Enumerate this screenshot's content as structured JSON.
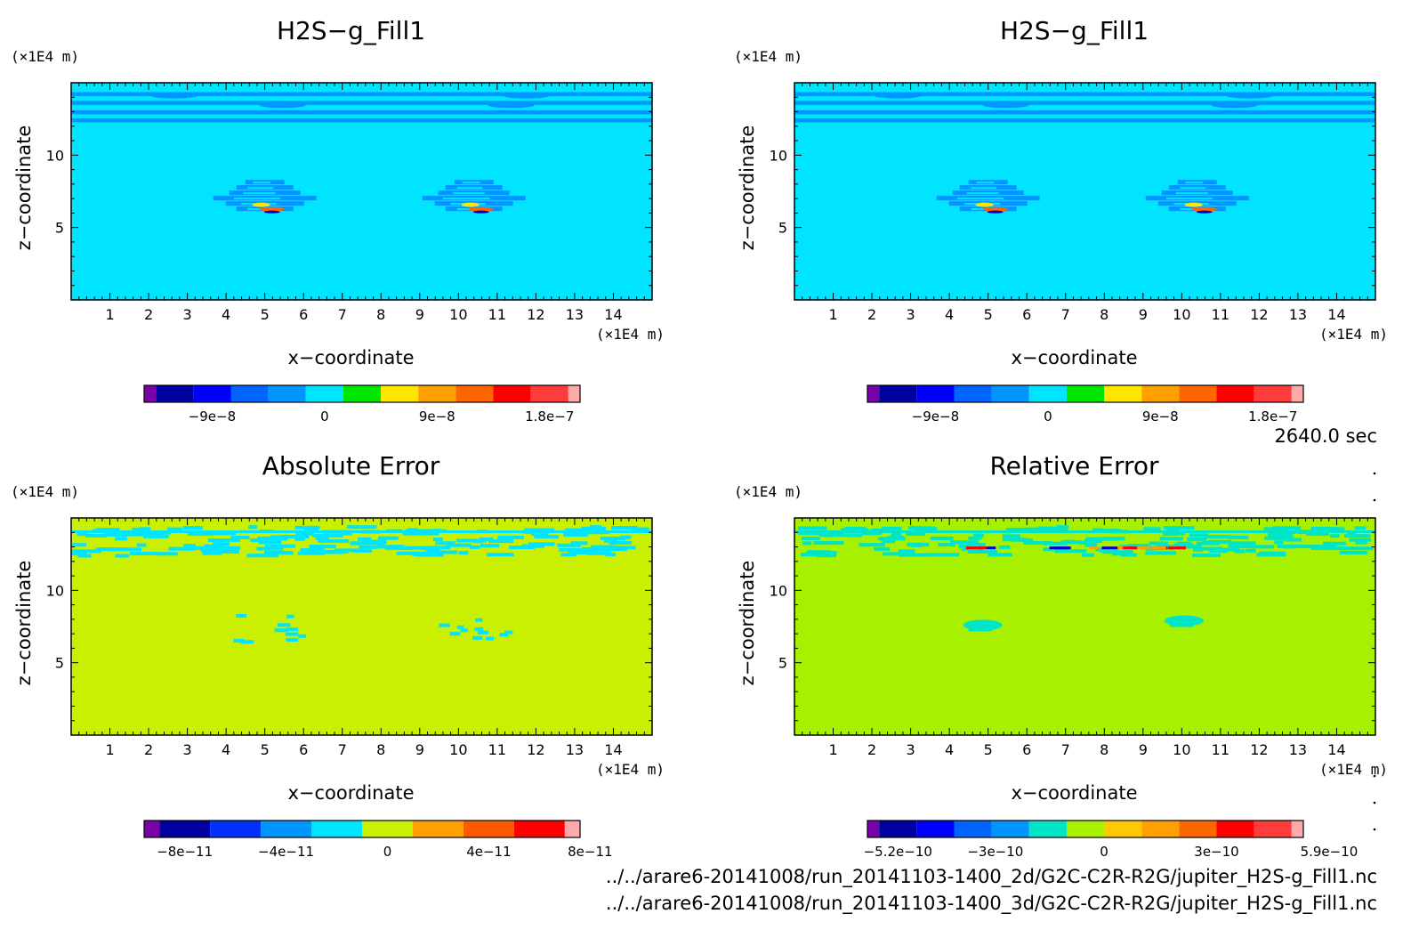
{
  "time_label": "2640.0 sec",
  "footer": {
    "line1": "../../arare6-20141008/run_20141103-1400_2d/G2C-C2R-R2G/jupiter_H2S-g_Fill1.nc",
    "line2": "../../arare6-20141008/run_20141103-1400_3d/G2C-C2R-R2G/jupiter_H2S-g_Fill1.nc"
  },
  "chart_data": [
    {
      "type": "heatmap",
      "title": "H2S−g_Fill1",
      "xlabel": "x−coordinate",
      "ylabel": "z−coordinate",
      "x_unit": "(×1E4 m)",
      "y_unit": "(×1E4 m)",
      "xlim": [
        0,
        15
      ],
      "ylim": [
        0,
        15
      ],
      "x_ticks": [
        "1",
        "2",
        "3",
        "4",
        "5",
        "6",
        "7",
        "8",
        "9",
        "10",
        "11",
        "12",
        "13",
        "14"
      ],
      "y_ticks": [
        "5",
        "10"
      ],
      "background_color": "#00e4ff",
      "features": [
        {
          "kind": "bands",
          "z_range": [
            12.5,
            14.5
          ],
          "color": "#0096ff"
        },
        {
          "kind": "plume",
          "x_center": 5.0,
          "z_center": 7.0,
          "colors": [
            "#0096ff",
            "#00e4ff",
            "#ffe600",
            "#ff6600",
            "#0000cc"
          ]
        },
        {
          "kind": "plume",
          "x_center": 10.4,
          "z_center": 7.0,
          "colors": [
            "#0096ff",
            "#00e4ff",
            "#ffe600",
            "#ff6600",
            "#0000cc"
          ]
        }
      ],
      "colorbar": {
        "colors": [
          "#7a00aa",
          "#0000a0",
          "#0000ff",
          "#0064ff",
          "#0096ff",
          "#00e4ff",
          "#00e600",
          "#ffe600",
          "#ff9f00",
          "#ff6600",
          "#ff0000",
          "#ff3c3c",
          "#ffaaaa"
        ],
        "tick_labels": [
          "−9e−8",
          "0",
          "9e−8",
          "1.8e−7"
        ]
      }
    },
    {
      "type": "heatmap",
      "title": "H2S−g_Fill1",
      "xlabel": "x−coordinate",
      "ylabel": "z−coordinate",
      "x_unit": "(×1E4 m)",
      "y_unit": "(×1E4 m)",
      "xlim": [
        0,
        15
      ],
      "ylim": [
        0,
        15
      ],
      "x_ticks": [
        "1",
        "2",
        "3",
        "4",
        "5",
        "6",
        "7",
        "8",
        "9",
        "10",
        "11",
        "12",
        "13",
        "14"
      ],
      "y_ticks": [
        "5",
        "10"
      ],
      "background_color": "#00e4ff",
      "features": [
        {
          "kind": "bands",
          "z_range": [
            12.5,
            14.5
          ],
          "color": "#0096ff"
        },
        {
          "kind": "plume",
          "x_center": 5.0,
          "z_center": 7.0,
          "colors": [
            "#0096ff",
            "#00e4ff",
            "#ffe600",
            "#ff6600",
            "#0000cc"
          ]
        },
        {
          "kind": "plume",
          "x_center": 10.4,
          "z_center": 7.0,
          "colors": [
            "#0096ff",
            "#00e4ff",
            "#ffe600",
            "#ff6600",
            "#0000cc"
          ]
        }
      ],
      "colorbar": {
        "colors": [
          "#7a00aa",
          "#0000a0",
          "#0000ff",
          "#0064ff",
          "#0096ff",
          "#00e4ff",
          "#00e600",
          "#ffe600",
          "#ff9f00",
          "#ff6600",
          "#ff0000",
          "#ff3c3c",
          "#ffaaaa"
        ],
        "tick_labels": [
          "−9e−8",
          "0",
          "9e−8",
          "1.8e−7"
        ]
      }
    },
    {
      "type": "heatmap",
      "title": "Absolute Error",
      "xlabel": "x−coordinate",
      "ylabel": "z−coordinate",
      "x_unit": "(×1E4 m)",
      "y_unit": "(×1E4 m)",
      "xlim": [
        0,
        15
      ],
      "ylim": [
        0,
        15
      ],
      "x_ticks": [
        "1",
        "2",
        "3",
        "4",
        "5",
        "6",
        "7",
        "8",
        "9",
        "10",
        "11",
        "12",
        "13",
        "14"
      ],
      "y_ticks": [
        "5",
        "10"
      ],
      "background_color": "#c8f000",
      "features": [
        {
          "kind": "noise",
          "z_range": [
            12.5,
            14.5
          ],
          "color": "#00e4ff"
        },
        {
          "kind": "specks",
          "x_center": 5.0,
          "z_center": 7.3,
          "color": "#00e4ff"
        },
        {
          "kind": "specks",
          "x_center": 10.4,
          "z_center": 7.3,
          "color": "#00e4ff"
        }
      ],
      "colorbar": {
        "colors": [
          "#7a00aa",
          "#0000a0",
          "#0032ff",
          "#0096ff",
          "#00e4ff",
          "#c8f000",
          "#ff9f00",
          "#ff5a00",
          "#ff0000",
          "#ffaaaa"
        ],
        "tick_labels": [
          "−8e−11",
          "−4e−11",
          "0",
          "4e−11",
          "8e−11"
        ]
      }
    },
    {
      "type": "heatmap",
      "title": "Relative Error",
      "xlabel": "x−coordinate",
      "ylabel": "z−coordinate",
      "x_unit": "(×1E4 m)",
      "y_unit": "(×1E4 m)",
      "xlim": [
        0,
        15
      ],
      "ylim": [
        0,
        15
      ],
      "x_ticks": [
        "1",
        "2",
        "3",
        "4",
        "5",
        "6",
        "7",
        "8",
        "9",
        "10",
        "11",
        "12",
        "13",
        "14"
      ],
      "y_ticks": [
        "5",
        "10"
      ],
      "background_color": "#a6f000",
      "features": [
        {
          "kind": "noise",
          "z_range": [
            12.5,
            14.5
          ],
          "color": "#00e4c8"
        },
        {
          "kind": "streak",
          "z": 12.9,
          "colors": [
            "#ff0000",
            "#0000cc",
            "#ff9f00"
          ]
        },
        {
          "kind": "blob",
          "x_center": 5.0,
          "z_center": 7.6,
          "color": "#00e4c8"
        },
        {
          "kind": "blob",
          "x_center": 10.2,
          "z_center": 7.9,
          "color": "#00e4c8"
        }
      ],
      "colorbar": {
        "colors": [
          "#7a00aa",
          "#0000a0",
          "#0000ff",
          "#0064ff",
          "#0096ff",
          "#00e4c8",
          "#a6f000",
          "#ffc800",
          "#ff9f00",
          "#ff6600",
          "#ff0000",
          "#ff3c3c",
          "#ffaaaa"
        ],
        "tick_labels": [
          "−5.2e−10",
          "−3e−10",
          "0",
          "3e−10",
          "5.9e−10"
        ]
      }
    }
  ]
}
